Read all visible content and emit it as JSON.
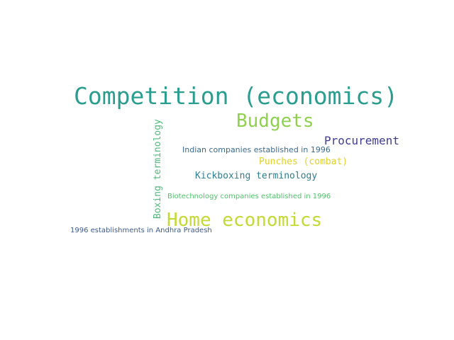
{
  "words": [
    {
      "text": "Competition (economics)",
      "color": "#2a9d8f"
    },
    {
      "text": "Budgets",
      "color": "#8fd14f"
    },
    {
      "text": "Procurement",
      "color": "#3f3d8f"
    },
    {
      "text": "Indian companies established in 1996",
      "color": "#3b6a8f"
    },
    {
      "text": "Punches (combat)",
      "color": "#e0d02a"
    },
    {
      "text": "Boxing terminology",
      "color": "#4fb87a"
    },
    {
      "text": "Kickboxing terminology",
      "color": "#2f7c8f"
    },
    {
      "text": "Biotechnology companies established in 1996",
      "color": "#4fc06a"
    },
    {
      "text": "Home economics",
      "color": "#c3d934"
    },
    {
      "text": "1996 establishments in Andhra Pradesh",
      "color": "#3c5a8c"
    }
  ]
}
